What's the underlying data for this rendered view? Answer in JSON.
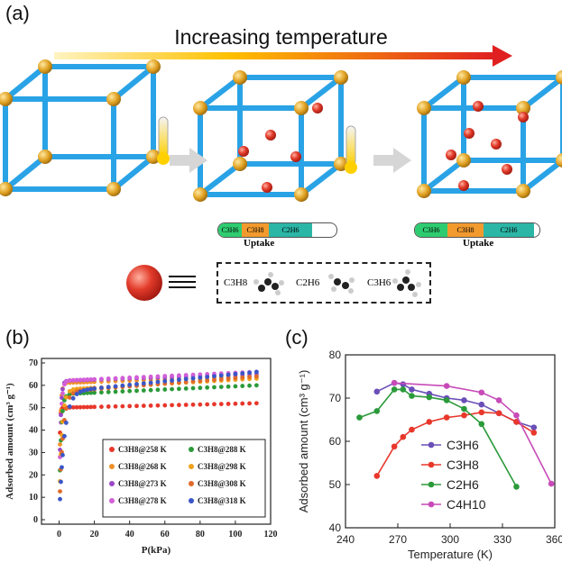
{
  "panel_a": {
    "label": "(a)",
    "title": "Increasing temperature",
    "bars": [
      {
        "segments": [
          "C3H6",
          "C3H8",
          "C2H6"
        ],
        "caption": "Uptake"
      },
      {
        "segments": [
          "C3H6",
          "C3H8",
          "C2H6"
        ],
        "caption": "Uptake"
      }
    ],
    "legend_gases": [
      "C3H8",
      "C2H6",
      "C3H6"
    ],
    "colors": {
      "arrow_start": "#ffd000",
      "arrow_end": "#e02020",
      "frame": "#2aa3e6",
      "node": "#e0a020",
      "sphere": "#e23b2a",
      "seg_green": "#2ecc71",
      "seg_orange": "#f29a2e",
      "seg_teal": "#2bb6a6"
    }
  },
  "panel_b": {
    "label": "(b)",
    "chart_data": {
      "type": "scatter",
      "xlabel": "P(kPa)",
      "ylabel": "Adsorbed amount (cm³ g⁻¹)",
      "xlim": [
        -10,
        120
      ],
      "ylim": [
        -2,
        72
      ],
      "xticks": [
        0,
        20,
        40,
        60,
        80,
        100,
        120
      ],
      "yticks": [
        0,
        10,
        20,
        30,
        40,
        50,
        60,
        70
      ],
      "legend_position": "lower-right",
      "series": [
        {
          "name": "C3H8@258 K",
          "color": "#e8372b",
          "plateau": 50,
          "max": 52,
          "k": 3.0
        },
        {
          "name": "C3H8@268 K",
          "color": "#f0902a",
          "plateau": 61,
          "max": 64,
          "k": 1.6
        },
        {
          "name": "C3H8@273 K",
          "color": "#9b48c8",
          "plateau": 62,
          "max": 65,
          "k": 1.4
        },
        {
          "name": "C3H8@278 K",
          "color": "#d25fd8",
          "plateau": 62,
          "max": 66,
          "k": 1.2
        },
        {
          "name": "C3H8@288 K",
          "color": "#2b9a3a",
          "plateau": 56,
          "max": 60,
          "k": 1.0
        },
        {
          "name": "C3H8@298 K",
          "color": "#f0a21e",
          "plateau": 58,
          "max": 63,
          "k": 0.7
        },
        {
          "name": "C3H8@308 K",
          "color": "#e06a2a",
          "plateau": 57,
          "max": 64,
          "k": 0.5
        },
        {
          "name": "C3H8@318 K",
          "color": "#3a56c8",
          "plateau": 57,
          "max": 66,
          "k": 0.35
        }
      ]
    }
  },
  "panel_c": {
    "label": "(c)",
    "chart_data": {
      "type": "line",
      "xlabel": "Temperature (K)",
      "ylabel": "Adsorbed amount (cm³ g⁻¹)",
      "xlim": [
        240,
        360
      ],
      "ylim": [
        40,
        80
      ],
      "xticks": [
        240,
        270,
        300,
        330,
        360
      ],
      "yticks": [
        40,
        50,
        60,
        70,
        80
      ],
      "legend_position": "right",
      "series": [
        {
          "name": "C3H6",
          "color": "#6a4fb8",
          "x": [
            258,
            268,
            273,
            278,
            288,
            298,
            308,
            318,
            328,
            338,
            348
          ],
          "y": [
            71.5,
            73.5,
            73.2,
            72,
            71,
            70,
            69.5,
            68.5,
            66.5,
            64.5,
            63.2
          ]
        },
        {
          "name": "C3H8",
          "color": "#e8372b",
          "x": [
            258,
            268,
            273,
            278,
            288,
            298,
            308,
            318,
            328,
            338,
            348
          ],
          "y": [
            52,
            58.8,
            61,
            62.7,
            64.5,
            65.5,
            66,
            66.7,
            66.5,
            64.5,
            62
          ]
        },
        {
          "name": "C2H6",
          "color": "#2b9a3a",
          "x": [
            248,
            258,
            268,
            273,
            278,
            288,
            298,
            308,
            318,
            338
          ],
          "y": [
            65.5,
            67,
            72,
            72,
            70.5,
            70.2,
            69.5,
            67.5,
            64,
            49.5
          ]
        },
        {
          "name": "C4H10",
          "color": "#c84ab8",
          "x": [
            268,
            298,
            318,
            328,
            338,
            358
          ],
          "y": [
            73.5,
            72.8,
            71.3,
            69.5,
            66,
            50.2
          ]
        }
      ]
    }
  }
}
